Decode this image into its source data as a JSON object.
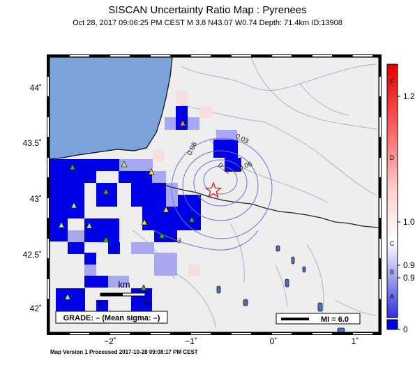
{
  "header": {
    "title": "SISCAN Uncertainty Ratio Map : Pyrenees",
    "subtitle": "Oct 28, 2017 09:06:25 PM CEST   M 3.8   N43.07 W0.74   Depth: 71.4km   ID:13908"
  },
  "footer": {
    "text": "Map Version 1 Processed 2017-10-28 09:08:17 PM CEST"
  },
  "map": {
    "lat_labels": [
      "44˚",
      "43.5˚",
      "43˚",
      "42.5˚",
      "42˚"
    ],
    "lon_labels": [
      "−2˚",
      "−1˚",
      "0˚",
      "1˚"
    ],
    "contour_labels": [
      "0.03",
      "0.03",
      "0.06",
      "0.12",
      "0.06",
      "0.03"
    ],
    "scale_bar": {
      "unit": "km",
      "start": "0",
      "end": "50"
    },
    "grade_box": "GRADE: – (Mean sigma: –)",
    "mi_legend": "MI = 6.0",
    "colors": {
      "ocean": "#7ba3da",
      "land": "#eeeeee",
      "grid_blue": "#0000e6",
      "epicenter": "#e02020"
    }
  },
  "colorbar": {
    "letters": [
      "F",
      "D",
      "C",
      "B",
      "A"
    ],
    "values": [
      "1.2",
      "1.0",
      "0.9",
      "0.9",
      "0"
    ]
  }
}
